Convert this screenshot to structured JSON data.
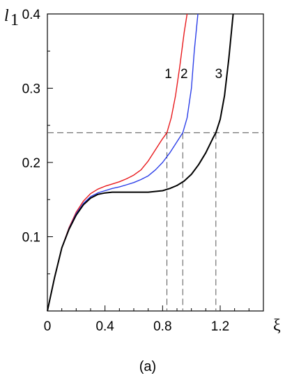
{
  "chart_data": {
    "type": "line",
    "title": "",
    "caption": "(a)",
    "xlabel": "ξ",
    "ylabel_main": "l",
    "ylabel_sub": "1",
    "xlim": [
      0,
      1.5
    ],
    "ylim": [
      0,
      0.4
    ],
    "x_ticks": [
      {
        "value": 0,
        "label": "0"
      },
      {
        "value": 0.4,
        "label": "0.4"
      },
      {
        "value": 0.8,
        "label": "0.8"
      },
      {
        "value": 1.2,
        "label": "1.2"
      }
    ],
    "y_ticks": [
      {
        "value": 0.1,
        "label": "0.1"
      },
      {
        "value": 0.2,
        "label": "0.2"
      },
      {
        "value": 0.3,
        "label": "0.3"
      },
      {
        "value": 0.4,
        "label": "0.4"
      }
    ],
    "reference_line": {
      "y": 0.24,
      "dash": true
    },
    "series": [
      {
        "label": "1",
        "color": "#e8191c",
        "crossing_x": 0.83,
        "label_pos": {
          "x": 0.84,
          "y": 0.32
        },
        "points": [
          [
            0,
            0
          ],
          [
            0.05,
            0.045
          ],
          [
            0.1,
            0.085
          ],
          [
            0.15,
            0.112
          ],
          [
            0.2,
            0.133
          ],
          [
            0.25,
            0.148
          ],
          [
            0.3,
            0.158
          ],
          [
            0.35,
            0.164
          ],
          [
            0.4,
            0.168
          ],
          [
            0.45,
            0.171
          ],
          [
            0.5,
            0.174
          ],
          [
            0.55,
            0.178
          ],
          [
            0.6,
            0.183
          ],
          [
            0.65,
            0.19
          ],
          [
            0.7,
            0.202
          ],
          [
            0.75,
            0.217
          ],
          [
            0.8,
            0.232
          ],
          [
            0.83,
            0.24
          ],
          [
            0.86,
            0.26
          ],
          [
            0.89,
            0.29
          ],
          [
            0.92,
            0.33
          ],
          [
            0.95,
            0.375
          ],
          [
            0.97,
            0.4
          ]
        ]
      },
      {
        "label": "2",
        "color": "#2c3fe8",
        "crossing_x": 0.94,
        "label_pos": {
          "x": 0.95,
          "y": 0.32
        },
        "points": [
          [
            0,
            0
          ],
          [
            0.05,
            0.045
          ],
          [
            0.1,
            0.085
          ],
          [
            0.15,
            0.111
          ],
          [
            0.2,
            0.131
          ],
          [
            0.25,
            0.145
          ],
          [
            0.3,
            0.154
          ],
          [
            0.35,
            0.159
          ],
          [
            0.4,
            0.162
          ],
          [
            0.45,
            0.165
          ],
          [
            0.5,
            0.167
          ],
          [
            0.55,
            0.17
          ],
          [
            0.6,
            0.173
          ],
          [
            0.65,
            0.177
          ],
          [
            0.7,
            0.182
          ],
          [
            0.75,
            0.19
          ],
          [
            0.8,
            0.2
          ],
          [
            0.85,
            0.213
          ],
          [
            0.9,
            0.228
          ],
          [
            0.94,
            0.24
          ],
          [
            0.97,
            0.26
          ],
          [
            1.0,
            0.3
          ],
          [
            1.02,
            0.35
          ],
          [
            1.045,
            0.4
          ]
        ]
      },
      {
        "label": "3",
        "color": "#000000",
        "crossing_x": 1.17,
        "label_pos": {
          "x": 1.19,
          "y": 0.32
        },
        "points": [
          [
            0,
            0
          ],
          [
            0.05,
            0.045
          ],
          [
            0.1,
            0.085
          ],
          [
            0.15,
            0.11
          ],
          [
            0.2,
            0.129
          ],
          [
            0.25,
            0.143
          ],
          [
            0.3,
            0.152
          ],
          [
            0.35,
            0.157
          ],
          [
            0.4,
            0.159
          ],
          [
            0.45,
            0.16
          ],
          [
            0.5,
            0.16
          ],
          [
            0.6,
            0.16
          ],
          [
            0.7,
            0.16
          ],
          [
            0.8,
            0.162
          ],
          [
            0.85,
            0.165
          ],
          [
            0.9,
            0.169
          ],
          [
            0.95,
            0.175
          ],
          [
            1.0,
            0.184
          ],
          [
            1.05,
            0.197
          ],
          [
            1.1,
            0.213
          ],
          [
            1.15,
            0.233
          ],
          [
            1.17,
            0.24
          ],
          [
            1.2,
            0.258
          ],
          [
            1.23,
            0.29
          ],
          [
            1.26,
            0.34
          ],
          [
            1.29,
            0.4
          ]
        ]
      }
    ]
  }
}
